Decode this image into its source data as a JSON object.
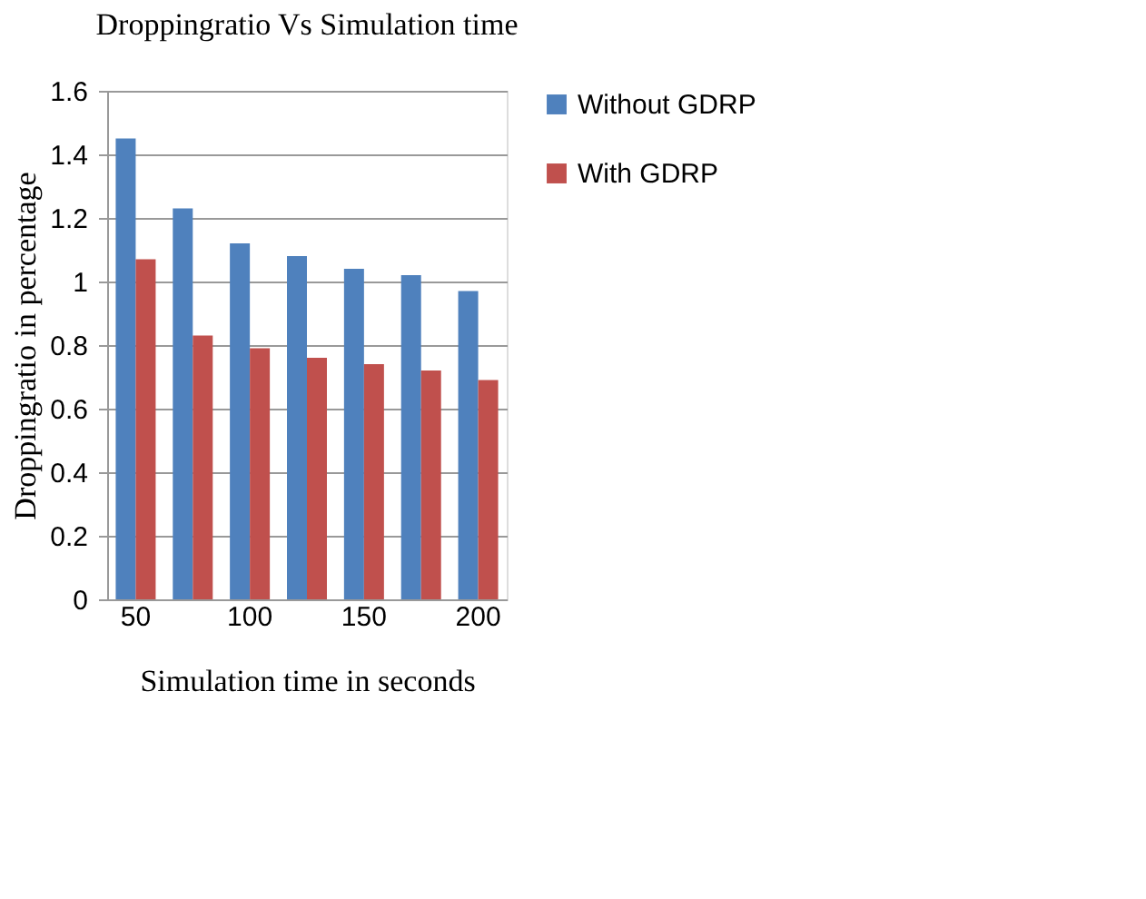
{
  "chart_data": {
    "type": "bar",
    "title": "Droppingratio Vs Simulation time",
    "xlabel": "Simulation time in seconds",
    "ylabel": "Droppingratio in percentage",
    "categories": [
      "50",
      null,
      "100",
      null,
      "150",
      null,
      "200"
    ],
    "series": [
      {
        "name": "Without GDRP",
        "color": "#4f81bd",
        "values": [
          1.45,
          1.23,
          1.12,
          1.08,
          1.04,
          1.02,
          0.97
        ]
      },
      {
        "name": "With GDRP",
        "color": "#c0504d",
        "values": [
          1.07,
          0.83,
          0.79,
          0.76,
          0.74,
          0.72,
          0.69
        ]
      }
    ],
    "ylim": [
      0,
      1.6
    ],
    "yticks": [
      0,
      0.2,
      0.4,
      0.6,
      0.8,
      1,
      1.2,
      1.4,
      1.6
    ],
    "grid": "y",
    "legend": "right"
  }
}
